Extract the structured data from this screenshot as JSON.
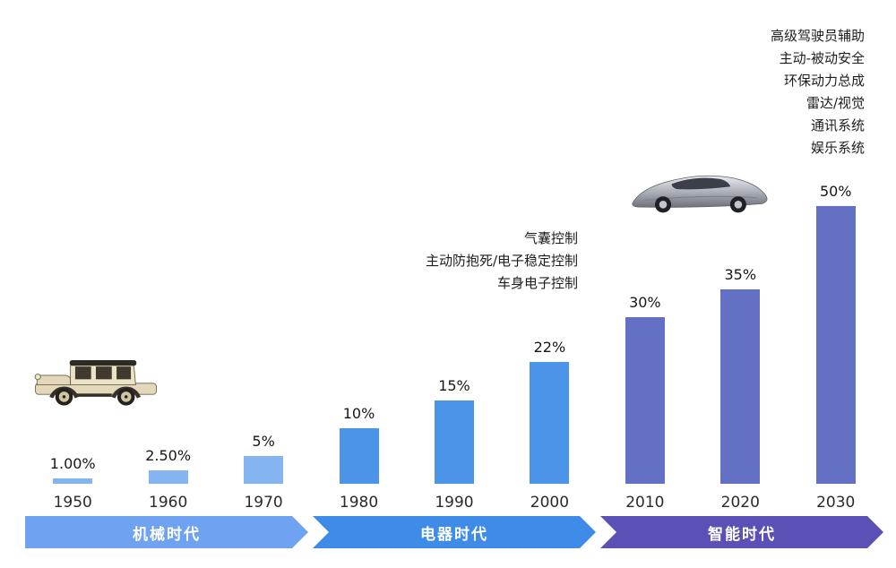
{
  "chart_data": {
    "type": "bar",
    "categories": [
      "1950",
      "1960",
      "1970",
      "1980",
      "1990",
      "2000",
      "2010",
      "2020",
      "2030"
    ],
    "values": [
      1.0,
      2.5,
      5,
      10,
      15,
      22,
      30,
      35,
      50
    ],
    "value_labels": [
      "1.00%",
      "2.50%",
      "5%",
      "10%",
      "15%",
      "22%",
      "30%",
      "35%",
      "50%"
    ],
    "era_of_bar": [
      0,
      0,
      0,
      1,
      1,
      1,
      2,
      2,
      2
    ],
    "ylim": [
      0,
      50
    ],
    "grid": false,
    "legend": false,
    "eras": [
      {
        "name": "机械时代",
        "bar_color": "#84B5F0",
        "banner_color": "#6FA3F1"
      },
      {
        "name": "电器时代",
        "bar_color": "#4B94E8",
        "banner_color": "#3E8BE8"
      },
      {
        "name": "智能时代",
        "bar_color": "#6370C4",
        "banner_color": "#5A50B6"
      }
    ]
  },
  "annotations": {
    "electrical": {
      "lines": [
        "气囊控制",
        "主动防抱死/电子稳定控制",
        "车身电子控制"
      ]
    },
    "smart": {
      "lines": [
        "高级驾驶员辅助",
        "主动-被动安全",
        "环保动力总成",
        "雷达/视觉",
        "通讯系统",
        "娱乐系统"
      ]
    }
  },
  "icons": {
    "vintage_car": "vintage-car-illustration",
    "concept_car": "concept-car-illustration"
  }
}
